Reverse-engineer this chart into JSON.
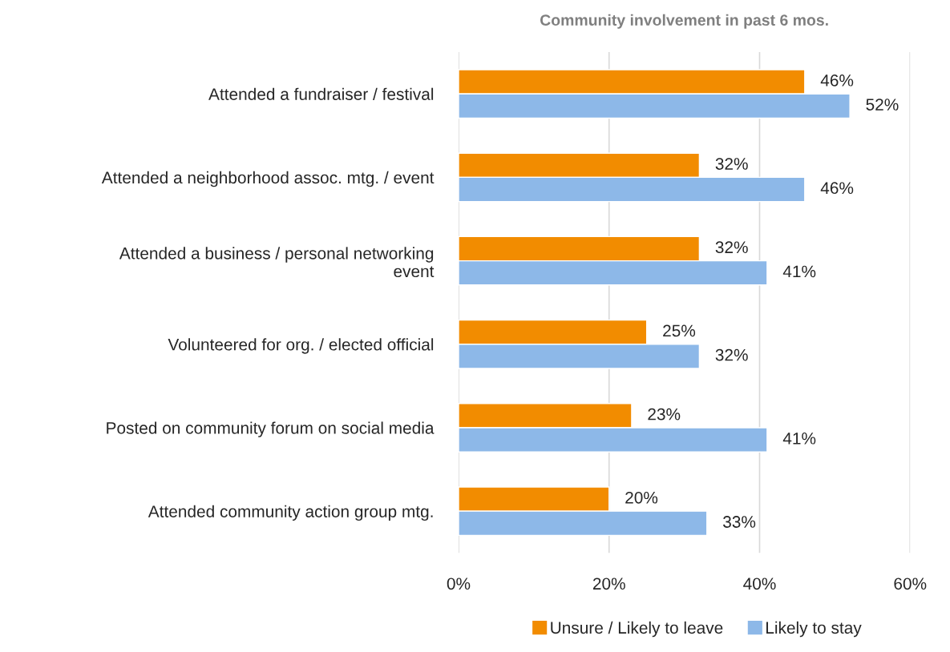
{
  "chart_data": {
    "type": "bar",
    "orientation": "horizontal",
    "title": "Community involvement in past 6 mos.",
    "categories": [
      "Attended a fundraiser / festival",
      "Attended a neighborhood assoc. mtg. / event",
      "Attended a business / personal networking\nevent",
      "Volunteered for org. / elected official",
      "Posted on community forum on social media",
      "Attended community action group mtg."
    ],
    "series": [
      {
        "name": "Unsure / Likely to leave",
        "color": "#f28c00",
        "values": [
          46,
          32,
          32,
          25,
          23,
          20
        ],
        "value_labels": [
          "46%",
          "32%",
          "32%",
          "25%",
          "23%",
          "20%"
        ]
      },
      {
        "name": "Likely to stay",
        "color": "#8db8e8",
        "values": [
          52,
          46,
          41,
          32,
          41,
          33
        ],
        "value_labels": [
          "52%",
          "46%",
          "41%",
          "32%",
          "41%",
          "33%"
        ]
      }
    ],
    "xlim": [
      0,
      60
    ],
    "xticks": [
      {
        "value": 0,
        "label": "0%"
      },
      {
        "value": 20,
        "label": "20%"
      },
      {
        "value": 40,
        "label": "40%"
      },
      {
        "value": 60,
        "label": "60%"
      }
    ],
    "grid": "x",
    "legend": "bottom"
  }
}
